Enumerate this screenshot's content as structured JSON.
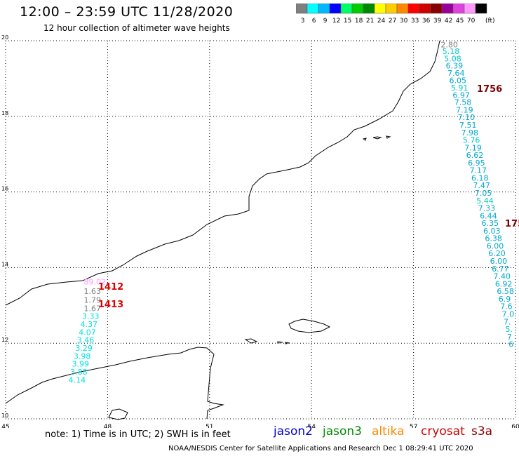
{
  "header": {
    "title": "12:00 – 23:59 UTC 11/28/2020",
    "subtitle": "12 hour collection of altimeter wave heights"
  },
  "legend": {
    "unit": "(ft)",
    "bins": [
      {
        "label": "3",
        "color": "#7f7f7f"
      },
      {
        "label": "6",
        "color": "#00ffff"
      },
      {
        "label": "9",
        "color": "#00b8ff"
      },
      {
        "label": "12",
        "color": "#0000ff"
      },
      {
        "label": "15",
        "color": "#00ff66"
      },
      {
        "label": "18",
        "color": "#00cc00"
      },
      {
        "label": "21",
        "color": "#008800"
      },
      {
        "label": "24",
        "color": "#ffff00"
      },
      {
        "label": "27",
        "color": "#ffcc00"
      },
      {
        "label": "30",
        "color": "#ff8800"
      },
      {
        "label": "33",
        "color": "#ff0000"
      },
      {
        "label": "36",
        "color": "#cc0000"
      },
      {
        "label": "39",
        "color": "#880000"
      },
      {
        "label": "42",
        "color": "#990099"
      },
      {
        "label": "45",
        "color": "#dd44dd"
      },
      {
        "label": "70",
        "color": "#ff99ff"
      },
      {
        "label": "",
        "color": "#000000"
      }
    ]
  },
  "map": {
    "lat_range": [
      10,
      20
    ],
    "lon_range": [
      45,
      60
    ],
    "lat_ticks": [
      "10",
      "12",
      "14",
      "16",
      "18",
      "20"
    ],
    "lon_ticks": [
      "45",
      "48",
      "51",
      "54",
      "57",
      "60"
    ],
    "passes": [
      {
        "satellite": "cryosat",
        "time_label": "1756",
        "time_color": "#7a0000",
        "points": [
          {
            "lon": 57.8,
            "lat": 19.82,
            "value": "2.80",
            "color": "#808080"
          },
          {
            "lon": 57.85,
            "lat": 19.65,
            "value": "5.18",
            "color": "#00c8c8"
          },
          {
            "lon": 57.9,
            "lat": 19.45,
            "value": "5.08",
            "color": "#00c8c8"
          },
          {
            "lon": 57.95,
            "lat": 19.27,
            "value": "6.39",
            "color": "#00a8d0"
          },
          {
            "lon": 58.0,
            "lat": 19.07,
            "value": "7.64",
            "color": "#00a8d0"
          },
          {
            "lon": 58.05,
            "lat": 18.88,
            "value": "6.05",
            "color": "#00a8d0"
          },
          {
            "lon": 58.1,
            "lat": 18.68,
            "value": "5.91",
            "color": "#00c8c8"
          },
          {
            "lon": 58.15,
            "lat": 18.49,
            "value": "6.97",
            "color": "#00a8d0"
          },
          {
            "lon": 58.2,
            "lat": 18.3,
            "value": "7.58",
            "color": "#00a8d0"
          },
          {
            "lon": 58.25,
            "lat": 18.1,
            "value": "7.19",
            "color": "#00a8d0"
          },
          {
            "lon": 58.3,
            "lat": 17.9,
            "value": "7.10",
            "color": "#00a8d0"
          },
          {
            "lon": 58.35,
            "lat": 17.7,
            "value": "7.51",
            "color": "#00a8d0"
          },
          {
            "lon": 58.4,
            "lat": 17.5,
            "value": "7.98",
            "color": "#00a8d0"
          },
          {
            "lon": 58.45,
            "lat": 17.3,
            "value": "5.76",
            "color": "#00c8c8"
          },
          {
            "lon": 58.5,
            "lat": 17.1,
            "value": "7.19",
            "color": "#00a8d0"
          },
          {
            "lon": 58.55,
            "lat": 16.9,
            "value": "6.62",
            "color": "#00a8d0"
          },
          {
            "lon": 58.6,
            "lat": 16.7,
            "value": "6.95",
            "color": "#00a8d0"
          },
          {
            "lon": 58.65,
            "lat": 16.5,
            "value": "7.17",
            "color": "#00a8d0"
          },
          {
            "lon": 58.7,
            "lat": 16.3,
            "value": "6.18",
            "color": "#00a8d0"
          },
          {
            "lon": 58.75,
            "lat": 16.1,
            "value": "7.47",
            "color": "#00a8d0"
          },
          {
            "lon": 58.8,
            "lat": 15.9,
            "value": "7.05",
            "color": "#00a8d0"
          },
          {
            "lon": 58.85,
            "lat": 15.7,
            "value": "5.44",
            "color": "#00c8c8"
          },
          {
            "lon": 58.9,
            "lat": 15.5,
            "value": "7.33",
            "color": "#00a8d0"
          },
          {
            "lon": 58.95,
            "lat": 15.3,
            "value": "6.44",
            "color": "#00a8d0"
          },
          {
            "lon": 59.0,
            "lat": 15.1,
            "value": "6.35",
            "color": "#00a8d0"
          },
          {
            "lon": 59.05,
            "lat": 14.9,
            "value": "6.03",
            "color": "#00a8d0"
          },
          {
            "lon": 59.1,
            "lat": 14.7,
            "value": "6.38",
            "color": "#00a8d0"
          },
          {
            "lon": 59.15,
            "lat": 14.5,
            "value": "6.00",
            "color": "#00a8d0"
          },
          {
            "lon": 59.2,
            "lat": 14.3,
            "value": "6.20",
            "color": "#00a8d0"
          },
          {
            "lon": 59.25,
            "lat": 14.1,
            "value": "6.00",
            "color": "#00a8d0"
          },
          {
            "lon": 59.3,
            "lat": 13.9,
            "value": "6.77",
            "color": "#00a8d0"
          },
          {
            "lon": 59.35,
            "lat": 13.7,
            "value": "7.40",
            "color": "#00a8d0"
          },
          {
            "lon": 59.4,
            "lat": 13.5,
            "value": "6.92",
            "color": "#00a8d0"
          },
          {
            "lon": 59.45,
            "lat": 13.3,
            "value": "6.58",
            "color": "#00a8d0"
          },
          {
            "lon": 59.5,
            "lat": 13.1,
            "value": "6.9",
            "color": "#00a8d0"
          },
          {
            "lon": 59.55,
            "lat": 12.9,
            "value": "7.6",
            "color": "#00a8d0"
          },
          {
            "lon": 59.6,
            "lat": 12.7,
            "value": "7.0",
            "color": "#00a8d0"
          },
          {
            "lon": 59.65,
            "lat": 12.5,
            "value": "7.",
            "color": "#00a8d0"
          },
          {
            "lon": 59.7,
            "lat": 12.3,
            "value": "5.",
            "color": "#00c8c8"
          },
          {
            "lon": 59.75,
            "lat": 12.1,
            "value": "7",
            "color": "#00a8d0"
          },
          {
            "lon": 59.8,
            "lat": 11.9,
            "value": "6",
            "color": "#00a8d0"
          }
        ]
      },
      {
        "satellite": "cryosat",
        "time_label": "175",
        "time_color": "#7a0000",
        "points": []
      },
      {
        "satellite": "s3a",
        "time_label": "1412",
        "time_color": "#dd0000",
        "points": [
          {
            "lon": 47.3,
            "lat": 13.55,
            "value": "89.02",
            "color": "#ff99ff"
          },
          {
            "lon": 47.3,
            "lat": 13.3,
            "value": "1.63",
            "color": "#808080"
          },
          {
            "lon": 47.3,
            "lat": 13.07,
            "value": "1.79",
            "color": "#808080"
          }
        ]
      },
      {
        "satellite": "s3a",
        "time_label": "1413",
        "time_color": "#dd0000",
        "points": [
          {
            "lon": 47.3,
            "lat": 12.85,
            "value": "1.67",
            "color": "#808080"
          },
          {
            "lon": 47.25,
            "lat": 12.64,
            "value": "3.33",
            "color": "#00e0e0"
          },
          {
            "lon": 47.2,
            "lat": 12.43,
            "value": "4.37",
            "color": "#00e0e0"
          },
          {
            "lon": 47.15,
            "lat": 12.22,
            "value": "4.07",
            "color": "#00e0e0"
          },
          {
            "lon": 47.1,
            "lat": 12.01,
            "value": "3.46",
            "color": "#00e0e0"
          },
          {
            "lon": 47.05,
            "lat": 11.8,
            "value": "3.29",
            "color": "#00e0e0"
          },
          {
            "lon": 47.0,
            "lat": 11.59,
            "value": "3.98",
            "color": "#00e0e0"
          },
          {
            "lon": 46.95,
            "lat": 11.38,
            "value": "3.99",
            "color": "#00e0e0"
          },
          {
            "lon": 46.9,
            "lat": 11.17,
            "value": "3.88",
            "color": "#00e0e0"
          },
          {
            "lon": 46.85,
            "lat": 10.96,
            "value": "4.14",
            "color": "#00e0e0"
          }
        ]
      }
    ]
  },
  "note": "note:  1) Time is in UTC;  2) SWH is in feet",
  "satellites": [
    {
      "name": "jason2",
      "color": "#0000cc"
    },
    {
      "name": "jason3",
      "color": "#008800"
    },
    {
      "name": "altika",
      "color": "#ff8800"
    },
    {
      "name": "cryosat",
      "color": "#cc0000"
    },
    {
      "name": "s3a",
      "color": "#880000"
    }
  ],
  "footer": "NOAA/NESDIS Center for Satellite Applications and Research    Dec  1 08:29:41 UTC 2020"
}
